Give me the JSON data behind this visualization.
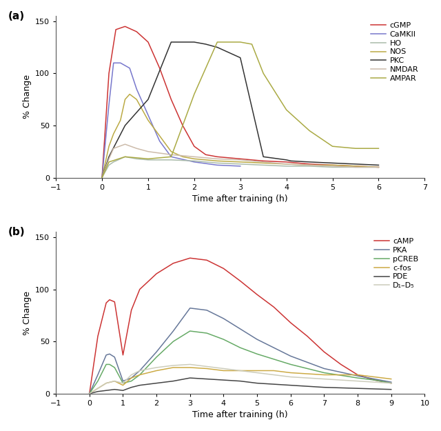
{
  "panel_a": {
    "xlabel": "Time after training (h)",
    "ylabel": "% Change",
    "label": "(a)",
    "xlim": [
      -1,
      7
    ],
    "ylim": [
      0,
      155
    ],
    "xticks": [
      -1,
      0,
      1,
      2,
      3,
      4,
      5,
      6,
      7
    ],
    "yticks": [
      0,
      50,
      100,
      150
    ],
    "series": {
      "cGMP": {
        "color": "#cc3333",
        "x": [
          0,
          0.15,
          0.3,
          0.5,
          0.75,
          1.0,
          1.25,
          1.5,
          1.75,
          2.0,
          2.25,
          2.5,
          3.0,
          3.5,
          4.0,
          4.5,
          5.0,
          5.5,
          6.0
        ],
        "y": [
          0,
          100,
          142,
          145,
          140,
          130,
          105,
          75,
          50,
          30,
          22,
          20,
          18,
          16,
          15,
          13,
          12,
          11,
          10
        ]
      },
      "CaMKII": {
        "color": "#7777cc",
        "x": [
          0,
          0.15,
          0.25,
          0.4,
          0.6,
          0.75,
          1.0,
          1.25,
          1.5,
          2.0,
          2.5,
          3.0
        ],
        "y": [
          0,
          70,
          110,
          110,
          105,
          85,
          60,
          35,
          20,
          15,
          12,
          11
        ]
      },
      "HO": {
        "color": "#aabbaa",
        "x": [
          0,
          0.15,
          0.25,
          0.5,
          0.75,
          1.0,
          1.5,
          2.0,
          2.5,
          3.0,
          3.5,
          4.0,
          4.5,
          5.0,
          5.5,
          6.0
        ],
        "y": [
          0,
          12,
          15,
          20,
          18,
          17,
          17,
          16,
          14,
          13,
          12,
          11,
          11,
          10,
          10,
          10
        ]
      },
      "NOS": {
        "color": "#bbaa44",
        "x": [
          0,
          0.15,
          0.25,
          0.4,
          0.5,
          0.6,
          0.75,
          1.0,
          1.25,
          1.5,
          1.75,
          2.0,
          2.5,
          3.0,
          3.5,
          4.0,
          4.5,
          5.0,
          5.5,
          6.0
        ],
        "y": [
          0,
          30,
          42,
          55,
          75,
          80,
          75,
          55,
          40,
          25,
          20,
          18,
          16,
          15,
          14,
          13,
          12,
          12,
          11,
          10
        ]
      },
      "PKC": {
        "color": "#333333",
        "x": [
          0,
          0.15,
          0.5,
          1.0,
          1.5,
          2.0,
          2.25,
          2.5,
          3.0,
          3.5,
          4.0,
          4.1,
          4.5,
          5.0,
          5.5,
          6.0
        ],
        "y": [
          0,
          20,
          50,
          75,
          130,
          130,
          128,
          125,
          115,
          20,
          17,
          16,
          15,
          14,
          13,
          12
        ]
      },
      "NMDAR": {
        "color": "#ccbbaa",
        "x": [
          0,
          0.15,
          0.25,
          0.5,
          0.75,
          1.0,
          1.5,
          2.0,
          2.5,
          3.0,
          3.5,
          4.0,
          4.5,
          5.0,
          5.5,
          6.0
        ],
        "y": [
          0,
          18,
          28,
          32,
          28,
          25,
          22,
          20,
          18,
          17,
          15,
          13,
          12,
          11,
          10,
          10
        ]
      },
      "AMPAR": {
        "color": "#aaaa44",
        "x": [
          0,
          0.15,
          0.5,
          1.0,
          1.5,
          2.0,
          2.5,
          3.0,
          3.25,
          3.5,
          4.0,
          4.5,
          5.0,
          5.5,
          6.0
        ],
        "y": [
          0,
          15,
          20,
          18,
          20,
          80,
          130,
          130,
          128,
          100,
          65,
          45,
          30,
          28,
          28
        ]
      }
    }
  },
  "panel_b": {
    "xlabel": "Time after training (h)",
    "ylabel": "% Change",
    "label": "(b)",
    "xlim": [
      -1,
      10
    ],
    "ylim": [
      0,
      155
    ],
    "xticks": [
      -1,
      0,
      1,
      2,
      3,
      4,
      5,
      6,
      7,
      8,
      9,
      10
    ],
    "yticks": [
      0,
      50,
      100,
      150
    ],
    "series": {
      "cAMP": {
        "color": "#cc3333",
        "x": [
          0,
          0.25,
          0.5,
          0.6,
          0.75,
          1.0,
          1.25,
          1.5,
          2.0,
          2.5,
          3.0,
          3.5,
          4.0,
          4.5,
          5.0,
          5.5,
          6.0,
          6.5,
          7.0,
          7.5,
          8.0,
          8.5,
          9.0
        ],
        "y": [
          0,
          55,
          87,
          90,
          88,
          37,
          80,
          100,
          115,
          125,
          130,
          128,
          120,
          108,
          95,
          83,
          68,
          55,
          40,
          28,
          18,
          13,
          10
        ]
      },
      "PKA": {
        "color": "#667799",
        "x": [
          0,
          0.25,
          0.5,
          0.6,
          0.75,
          1.0,
          1.25,
          1.5,
          2.0,
          2.5,
          3.0,
          3.5,
          4.0,
          4.5,
          5.0,
          5.5,
          6.0,
          7.0,
          8.0,
          8.5,
          9.0
        ],
        "y": [
          0,
          18,
          37,
          38,
          35,
          12,
          15,
          22,
          40,
          60,
          82,
          80,
          72,
          62,
          52,
          44,
          36,
          24,
          17,
          14,
          11
        ]
      },
      "pCREB": {
        "color": "#66aa66",
        "x": [
          0,
          0.25,
          0.5,
          0.6,
          0.75,
          1.0,
          1.25,
          1.5,
          2.0,
          2.5,
          3.0,
          3.5,
          4.0,
          4.5,
          5.0,
          5.5,
          6.0,
          7.0,
          8.0,
          8.5,
          9.0
        ],
        "y": [
          0,
          12,
          28,
          28,
          25,
          10,
          12,
          18,
          35,
          50,
          60,
          58,
          52,
          44,
          38,
          33,
          28,
          20,
          15,
          13,
          10
        ]
      },
      "c-fos": {
        "color": "#ccaa44",
        "x": [
          0,
          0.25,
          0.5,
          0.75,
          1.0,
          1.25,
          1.5,
          2.0,
          2.5,
          3.0,
          3.5,
          4.0,
          4.5,
          5.0,
          5.5,
          6.0,
          7.0,
          8.0,
          8.5,
          9.0
        ],
        "y": [
          0,
          5,
          10,
          12,
          8,
          15,
          18,
          22,
          25,
          25,
          24,
          22,
          22,
          22,
          22,
          20,
          18,
          18,
          16,
          14
        ]
      },
      "PDE": {
        "color": "#444444",
        "x": [
          0,
          0.25,
          0.5,
          0.75,
          1.0,
          1.25,
          1.5,
          2.0,
          2.5,
          3.0,
          3.5,
          4.0,
          4.5,
          5.0,
          6.0,
          7.0,
          8.0,
          9.0
        ],
        "y": [
          0,
          2,
          3,
          4,
          3,
          6,
          8,
          10,
          12,
          15,
          14,
          13,
          12,
          10,
          8,
          6,
          5,
          4
        ]
      },
      "D₁–D₅": {
        "color": "#ccccbb",
        "x": [
          0,
          0.25,
          0.5,
          0.75,
          1.0,
          1.25,
          1.5,
          2.0,
          2.5,
          3.0,
          3.5,
          4.0,
          4.5,
          5.0,
          6.0,
          7.0,
          8.0,
          9.0
        ],
        "y": [
          0,
          5,
          10,
          12,
          10,
          18,
          22,
          25,
          27,
          28,
          26,
          24,
          22,
          20,
          16,
          14,
          12,
          10
        ]
      }
    }
  },
  "figure_bg": "#ffffff",
  "axes_bg": "#ffffff"
}
